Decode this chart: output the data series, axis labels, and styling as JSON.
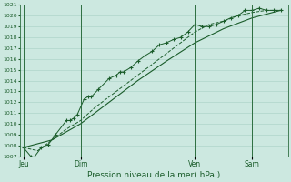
{
  "background_color": "#cce8e0",
  "plot_bg_color": "#cce8e0",
  "grid_color": "#a8cfc4",
  "line_color": "#1a5c2a",
  "marker_color": "#1a5c2a",
  "title": "Pression niveau de la mer( hPa )",
  "ylim": [
    1007,
    1021
  ],
  "yticks": [
    1007,
    1008,
    1009,
    1010,
    1011,
    1012,
    1013,
    1014,
    1015,
    1016,
    1017,
    1018,
    1019,
    1020,
    1021
  ],
  "xtick_labels": [
    "Jeu",
    "Dim",
    "Ven",
    "Sam"
  ],
  "xtick_positions": [
    0,
    16,
    48,
    64
  ],
  "vlines": [
    0,
    16,
    48,
    64
  ],
  "xlim": [
    -1,
    74
  ],
  "series1": [
    [
      0,
      1007.8
    ],
    [
      2,
      1007.0
    ],
    [
      3,
      1006.9
    ],
    [
      5,
      1007.8
    ],
    [
      7,
      1008.1
    ],
    [
      9,
      1009.0
    ],
    [
      12,
      1010.3
    ],
    [
      13,
      1010.3
    ],
    [
      14,
      1010.5
    ],
    [
      15,
      1010.8
    ],
    [
      17,
      1012.3
    ],
    [
      18,
      1012.5
    ],
    [
      19,
      1012.5
    ],
    [
      21,
      1013.2
    ],
    [
      24,
      1014.2
    ],
    [
      26,
      1014.5
    ],
    [
      27,
      1014.8
    ],
    [
      28,
      1014.8
    ],
    [
      30,
      1015.2
    ],
    [
      32,
      1015.8
    ],
    [
      34,
      1016.3
    ],
    [
      36,
      1016.7
    ],
    [
      38,
      1017.3
    ],
    [
      40,
      1017.5
    ],
    [
      42,
      1017.8
    ],
    [
      44,
      1018.0
    ],
    [
      46,
      1018.5
    ],
    [
      48,
      1019.2
    ],
    [
      50,
      1019.0
    ],
    [
      52,
      1019.0
    ],
    [
      54,
      1019.2
    ],
    [
      56,
      1019.5
    ],
    [
      58,
      1019.8
    ],
    [
      60,
      1020.0
    ],
    [
      62,
      1020.5
    ],
    [
      64,
      1020.5
    ],
    [
      66,
      1020.7
    ],
    [
      68,
      1020.5
    ],
    [
      70,
      1020.5
    ],
    [
      72,
      1020.5
    ]
  ],
  "series2": [
    [
      0,
      1007.8
    ],
    [
      8,
      1008.5
    ],
    [
      16,
      1010.0
    ],
    [
      24,
      1012.0
    ],
    [
      32,
      1014.0
    ],
    [
      40,
      1015.8
    ],
    [
      48,
      1017.5
    ],
    [
      56,
      1018.8
    ],
    [
      64,
      1019.8
    ],
    [
      72,
      1020.5
    ]
  ],
  "series3": [
    [
      0,
      1007.8
    ],
    [
      4,
      1007.5
    ],
    [
      8,
      1008.5
    ],
    [
      12,
      1009.5
    ],
    [
      16,
      1010.3
    ],
    [
      20,
      1011.5
    ],
    [
      24,
      1012.5
    ],
    [
      28,
      1013.5
    ],
    [
      32,
      1014.5
    ],
    [
      36,
      1015.5
    ],
    [
      40,
      1016.5
    ],
    [
      44,
      1017.5
    ],
    [
      48,
      1018.5
    ],
    [
      52,
      1019.2
    ],
    [
      56,
      1019.5
    ],
    [
      60,
      1020.0
    ],
    [
      64,
      1020.3
    ],
    [
      68,
      1020.5
    ],
    [
      72,
      1020.5
    ]
  ]
}
